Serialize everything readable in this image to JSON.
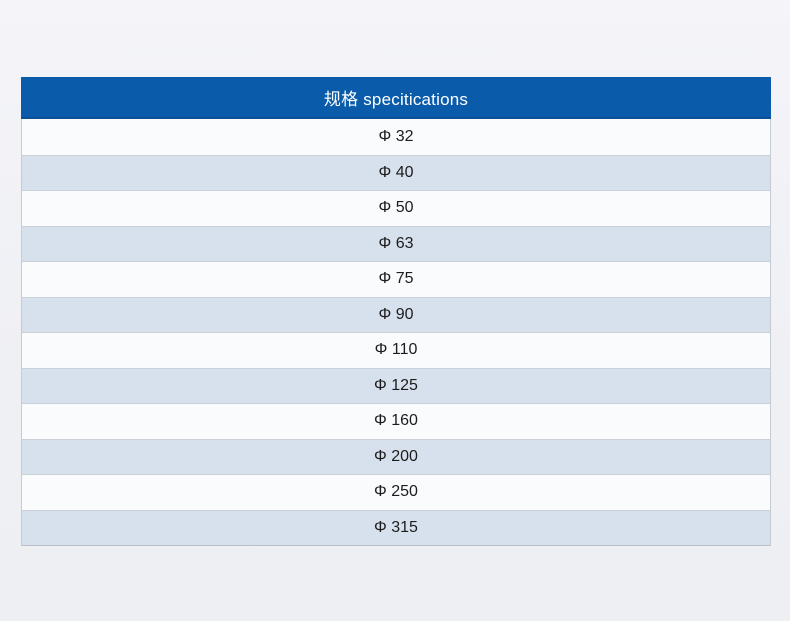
{
  "table": {
    "header": "规格 specitications",
    "rows": [
      "Φ 32",
      "Φ 40",
      "Φ 50",
      "Φ 63",
      "Φ 75",
      "Φ 90",
      "Φ 110",
      "Φ 125",
      "Φ 160",
      "Φ 200",
      "Φ 250",
      "Φ 315"
    ]
  },
  "colors": {
    "page_background": "#f1f1f6",
    "header_background": "#0a5cab",
    "header_bottom_border": "#0b5094",
    "header_text": "#ffffff",
    "row_light": "#fafbfd",
    "row_shade": "#d7e1ed",
    "grid_line": "#c5cbd3",
    "row_text": "#1c1c1c"
  }
}
